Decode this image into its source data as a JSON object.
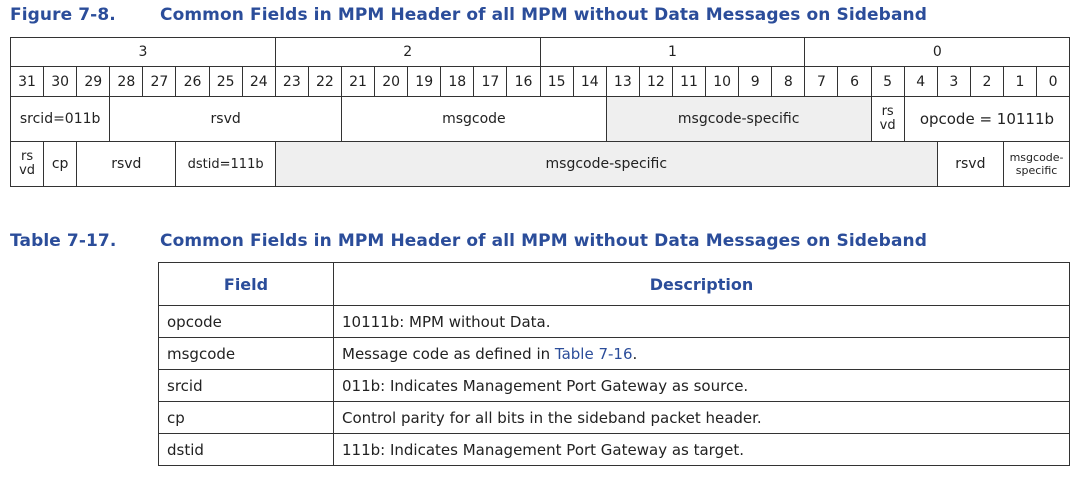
{
  "figure": {
    "number": "Figure 7-8.",
    "title": "Common Fields in MPM Header of all MPM without Data Messages on Sideband",
    "bytes": [
      "3",
      "2",
      "1",
      "0"
    ],
    "bits": [
      "31",
      "30",
      "29",
      "28",
      "27",
      "26",
      "25",
      "24",
      "23",
      "22",
      "21",
      "20",
      "19",
      "18",
      "17",
      "16",
      "15",
      "14",
      "13",
      "12",
      "11",
      "10",
      "9",
      "8",
      "7",
      "6",
      "5",
      "4",
      "3",
      "2",
      "1",
      "0"
    ],
    "row1": {
      "srcid": "srcid=011b",
      "rsvd": "rsvd",
      "msgcode": "msgcode",
      "msgcode_specific": "msgcode-specific",
      "rsvd_top": "rs",
      "rsvd_bottom": "vd",
      "opcode": "opcode = 10111b"
    },
    "row2": {
      "rsvd_top": "rs",
      "rsvd_bottom": "vd",
      "cp": "cp",
      "rsvd": "rsvd",
      "dstid": "dstid=111b",
      "msgcode_specific": "msgcode-specific",
      "rsvd2": "rsvd",
      "msgcode_specific_small_top": "msgcode-",
      "msgcode_specific_small_bottom": "specific"
    }
  },
  "table": {
    "number": "Table 7-17.",
    "title": "Common Fields in MPM Header of all MPM without Data Messages on Sideband",
    "headers": {
      "field": "Field",
      "description": "Description"
    },
    "rows": [
      {
        "field": "opcode",
        "description": "10111b: MPM without Data."
      },
      {
        "field": "msgcode",
        "description_prefix": "Message code as defined in ",
        "description_link": "Table 7-16",
        "description_suffix": "."
      },
      {
        "field": "srcid",
        "description": "011b: Indicates Management Port Gateway as source."
      },
      {
        "field": "cp",
        "description": "Control parity for all bits in the sideband packet header."
      },
      {
        "field": "dstid",
        "description": "111b: Indicates Management Port Gateway as target."
      }
    ]
  },
  "colors": {
    "caption": "#2b4d9a",
    "shaded_cell": "#efefef",
    "border": "#333333"
  }
}
